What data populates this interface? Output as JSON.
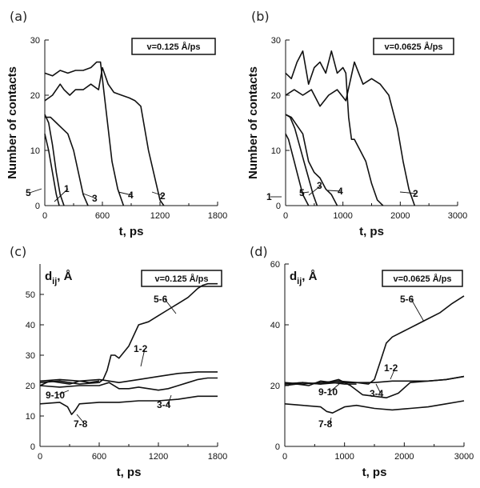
{
  "chart_data": [
    {
      "panel": "(a)",
      "type": "line",
      "ylabel": "Number of contacts",
      "xlabel": "t, ps",
      "xlim": [
        0,
        1800
      ],
      "ylim": [
        0,
        30
      ],
      "xticks": [
        0,
        600,
        1200,
        1800
      ],
      "yticks": [
        0,
        10,
        20,
        30
      ],
      "annotation": "v=0.125 Å/ps",
      "grid": false,
      "series": [
        {
          "name": "1",
          "x": [
            0,
            40,
            80,
            120,
            160,
            200
          ],
          "y": [
            16.5,
            15,
            11,
            6,
            2,
            0
          ]
        },
        {
          "name": "5",
          "x": [
            0,
            40,
            80,
            120,
            150
          ],
          "y": [
            13,
            10,
            6,
            2,
            0
          ]
        },
        {
          "name": "3",
          "x": [
            0,
            60,
            120,
            180,
            240,
            300,
            350,
            400,
            450
          ],
          "y": [
            16,
            16,
            15,
            14,
            13,
            10,
            6,
            2,
            0
          ]
        },
        {
          "name": "4",
          "x": [
            0,
            80,
            160,
            240,
            320,
            400,
            480,
            540,
            580,
            620,
            660,
            700,
            760,
            820
          ],
          "y": [
            24,
            23.5,
            24.5,
            24,
            24.5,
            24.5,
            25,
            26,
            26,
            20,
            14,
            8,
            3,
            0
          ]
        },
        {
          "name": "2",
          "x": [
            0,
            80,
            160,
            200,
            260,
            320,
            400,
            480,
            560,
            600,
            660,
            720,
            800,
            880,
            940,
            1000,
            1040,
            1080,
            1120,
            1160,
            1200,
            1240
          ],
          "y": [
            19,
            20,
            22,
            21,
            20,
            21,
            21,
            22,
            21,
            25,
            22,
            20.5,
            20,
            19.5,
            19,
            18,
            14,
            10,
            7,
            4,
            1,
            0
          ]
        }
      ],
      "curve_labels": [
        "5",
        "1",
        "3",
        "4",
        "2"
      ]
    },
    {
      "panel": "(b)",
      "type": "line",
      "ylabel": "Number of contacts",
      "xlabel": "t, ps",
      "xlim": [
        0,
        3000
      ],
      "ylim": [
        0,
        30
      ],
      "xticks": [
        0,
        1000,
        2000,
        3000
      ],
      "yticks": [
        0,
        10,
        20,
        30
      ],
      "annotation": "v=0.0625 Å/ps",
      "grid": false,
      "series": [
        {
          "name": "1",
          "x": [
            0,
            50,
            100,
            150,
            200,
            250,
            300,
            350,
            400
          ],
          "y": [
            13,
            12,
            10,
            8,
            6,
            4,
            2,
            1,
            0
          ]
        },
        {
          "name": "5",
          "x": [
            0,
            80,
            160,
            240,
            320,
            400,
            480,
            550
          ],
          "y": [
            16.5,
            16,
            14,
            11,
            8,
            5,
            2,
            0
          ]
        },
        {
          "name": "3",
          "x": [
            0,
            100,
            200,
            300,
            400,
            500,
            600,
            700,
            800,
            850,
            900
          ],
          "y": [
            16.5,
            16,
            14.5,
            13,
            8,
            6,
            5,
            3,
            2,
            1,
            0
          ]
        },
        {
          "name": "4",
          "x": [
            0,
            100,
            200,
            300,
            400,
            500,
            600,
            700,
            800,
            900,
            1000,
            1050,
            1100,
            1150,
            1200,
            1300,
            1400,
            1500,
            1600,
            1700
          ],
          "y": [
            24,
            23,
            26,
            28,
            22,
            25,
            26,
            24,
            28,
            24,
            25,
            24,
            16,
            12,
            12,
            10,
            8,
            4,
            1,
            0
          ]
        },
        {
          "name": "2",
          "x": [
            0,
            150,
            300,
            450,
            600,
            750,
            900,
            1050,
            1200,
            1350,
            1500,
            1650,
            1800,
            1950,
            2050,
            2150,
            2250
          ],
          "y": [
            20,
            21,
            20,
            21,
            18,
            20,
            21,
            19,
            26,
            22,
            23,
            22,
            20,
            14,
            8,
            3,
            0
          ]
        }
      ],
      "curve_labels": [
        "1",
        "5",
        "3",
        "4",
        "2"
      ]
    },
    {
      "panel": "(c)",
      "type": "line",
      "ylabel": "dij, Å",
      "xlabel": "t, ps",
      "xlim": [
        0,
        1800
      ],
      "ylim": [
        0,
        60
      ],
      "xticks": [
        0,
        600,
        1200,
        1800
      ],
      "yticks": [
        0,
        10,
        20,
        30,
        40,
        50
      ],
      "annotation": "v=0.125 Å/ps",
      "grid": false,
      "series": [
        {
          "name": "5-6",
          "x": [
            0,
            200,
            400,
            600,
            640,
            680,
            720,
            760,
            800,
            900,
            1000,
            1100,
            1200,
            1300,
            1400,
            1500,
            1600,
            1650,
            1700,
            1750,
            1800
          ],
          "y": [
            21,
            21.5,
            20.5,
            21,
            22,
            25,
            30,
            30,
            29,
            33,
            40,
            41,
            43,
            45,
            47,
            49,
            52,
            53,
            53.5,
            53.5,
            53.5
          ]
        },
        {
          "name": "1-2",
          "x": [
            0,
            200,
            400,
            600,
            800,
            1000,
            1200,
            1400,
            1600,
            1800
          ],
          "y": [
            21.5,
            22,
            21.5,
            22,
            21,
            22,
            23,
            24,
            24.5,
            24.5
          ]
        },
        {
          "name": "3-4",
          "x": [
            0,
            200,
            400,
            600,
            700,
            800,
            900,
            1000,
            1100,
            1200,
            1300,
            1400,
            1500,
            1600,
            1700,
            1800
          ],
          "y": [
            20,
            19.5,
            20,
            20,
            21,
            19,
            19,
            19.5,
            19,
            18.5,
            19,
            20,
            21,
            22,
            22.5,
            22.5
          ]
        },
        {
          "name": "9-10",
          "x": [
            0,
            100,
            200,
            300,
            400,
            500,
            600
          ],
          "y": [
            20,
            21.5,
            21,
            20.5,
            21.5,
            21,
            21.5
          ]
        },
        {
          "name": "7-8",
          "x": [
            0,
            200,
            280,
            320,
            360,
            400,
            600,
            800,
            1000,
            1200,
            1400,
            1600,
            1800
          ],
          "y": [
            14,
            14.5,
            13,
            10.5,
            12,
            14,
            14.5,
            14.5,
            15,
            15,
            15.5,
            16.5,
            16.5
          ]
        }
      ],
      "curve_labels": [
        "5-6",
        "1-2",
        "9-10",
        "3-4",
        "7-8"
      ]
    },
    {
      "panel": "(d)",
      "type": "line",
      "ylabel": "dij, Å",
      "xlabel": "t, ps",
      "xlim": [
        0,
        3000
      ],
      "ylim": [
        0,
        60
      ],
      "xticks": [
        0,
        1000,
        2000,
        3000
      ],
      "yticks": [
        0,
        20,
        40,
        60
      ],
      "annotation": "v=0.0625 Å/ps",
      "grid": false,
      "series": [
        {
          "name": "5-6",
          "x": [
            0,
            300,
            600,
            900,
            1200,
            1400,
            1500,
            1600,
            1700,
            1800,
            2000,
            2200,
            2400,
            2600,
            2800,
            3000
          ],
          "y": [
            20.5,
            21,
            20.5,
            21,
            21,
            20.5,
            22,
            28,
            34,
            36,
            38,
            40,
            42,
            44,
            47,
            49.5
          ]
        },
        {
          "name": "1-2",
          "x": [
            0,
            300,
            600,
            900,
            1200,
            1500,
            1800,
            2100,
            2400,
            2700,
            3000
          ],
          "y": [
            21,
            20.5,
            21,
            21.5,
            21,
            21,
            21.5,
            21.5,
            21.5,
            22,
            23
          ]
        },
        {
          "name": "3-4",
          "x": [
            0,
            300,
            600,
            900,
            1100,
            1300,
            1500,
            1700,
            1900,
            2100,
            2400,
            2700,
            3000
          ],
          "y": [
            20.5,
            21,
            20.5,
            22,
            20,
            17,
            16.5,
            16,
            17.5,
            21,
            21.5,
            22,
            23
          ]
        },
        {
          "name": "9-10",
          "x": [
            0,
            200,
            400,
            600,
            800,
            1000,
            1200
          ],
          "y": [
            20,
            20.5,
            20,
            21.5,
            21,
            20.5,
            20.5
          ]
        },
        {
          "name": "7-8",
          "x": [
            0,
            300,
            600,
            700,
            800,
            900,
            1000,
            1200,
            1500,
            1800,
            2100,
            2400,
            2700,
            3000
          ],
          "y": [
            14,
            13.5,
            13,
            11.5,
            11,
            12,
            13,
            13.5,
            12.5,
            12,
            12.5,
            13,
            14,
            15
          ]
        }
      ],
      "curve_labels": [
        "5-6",
        "1-2",
        "9-10",
        "3-4",
        "7-8"
      ]
    }
  ]
}
